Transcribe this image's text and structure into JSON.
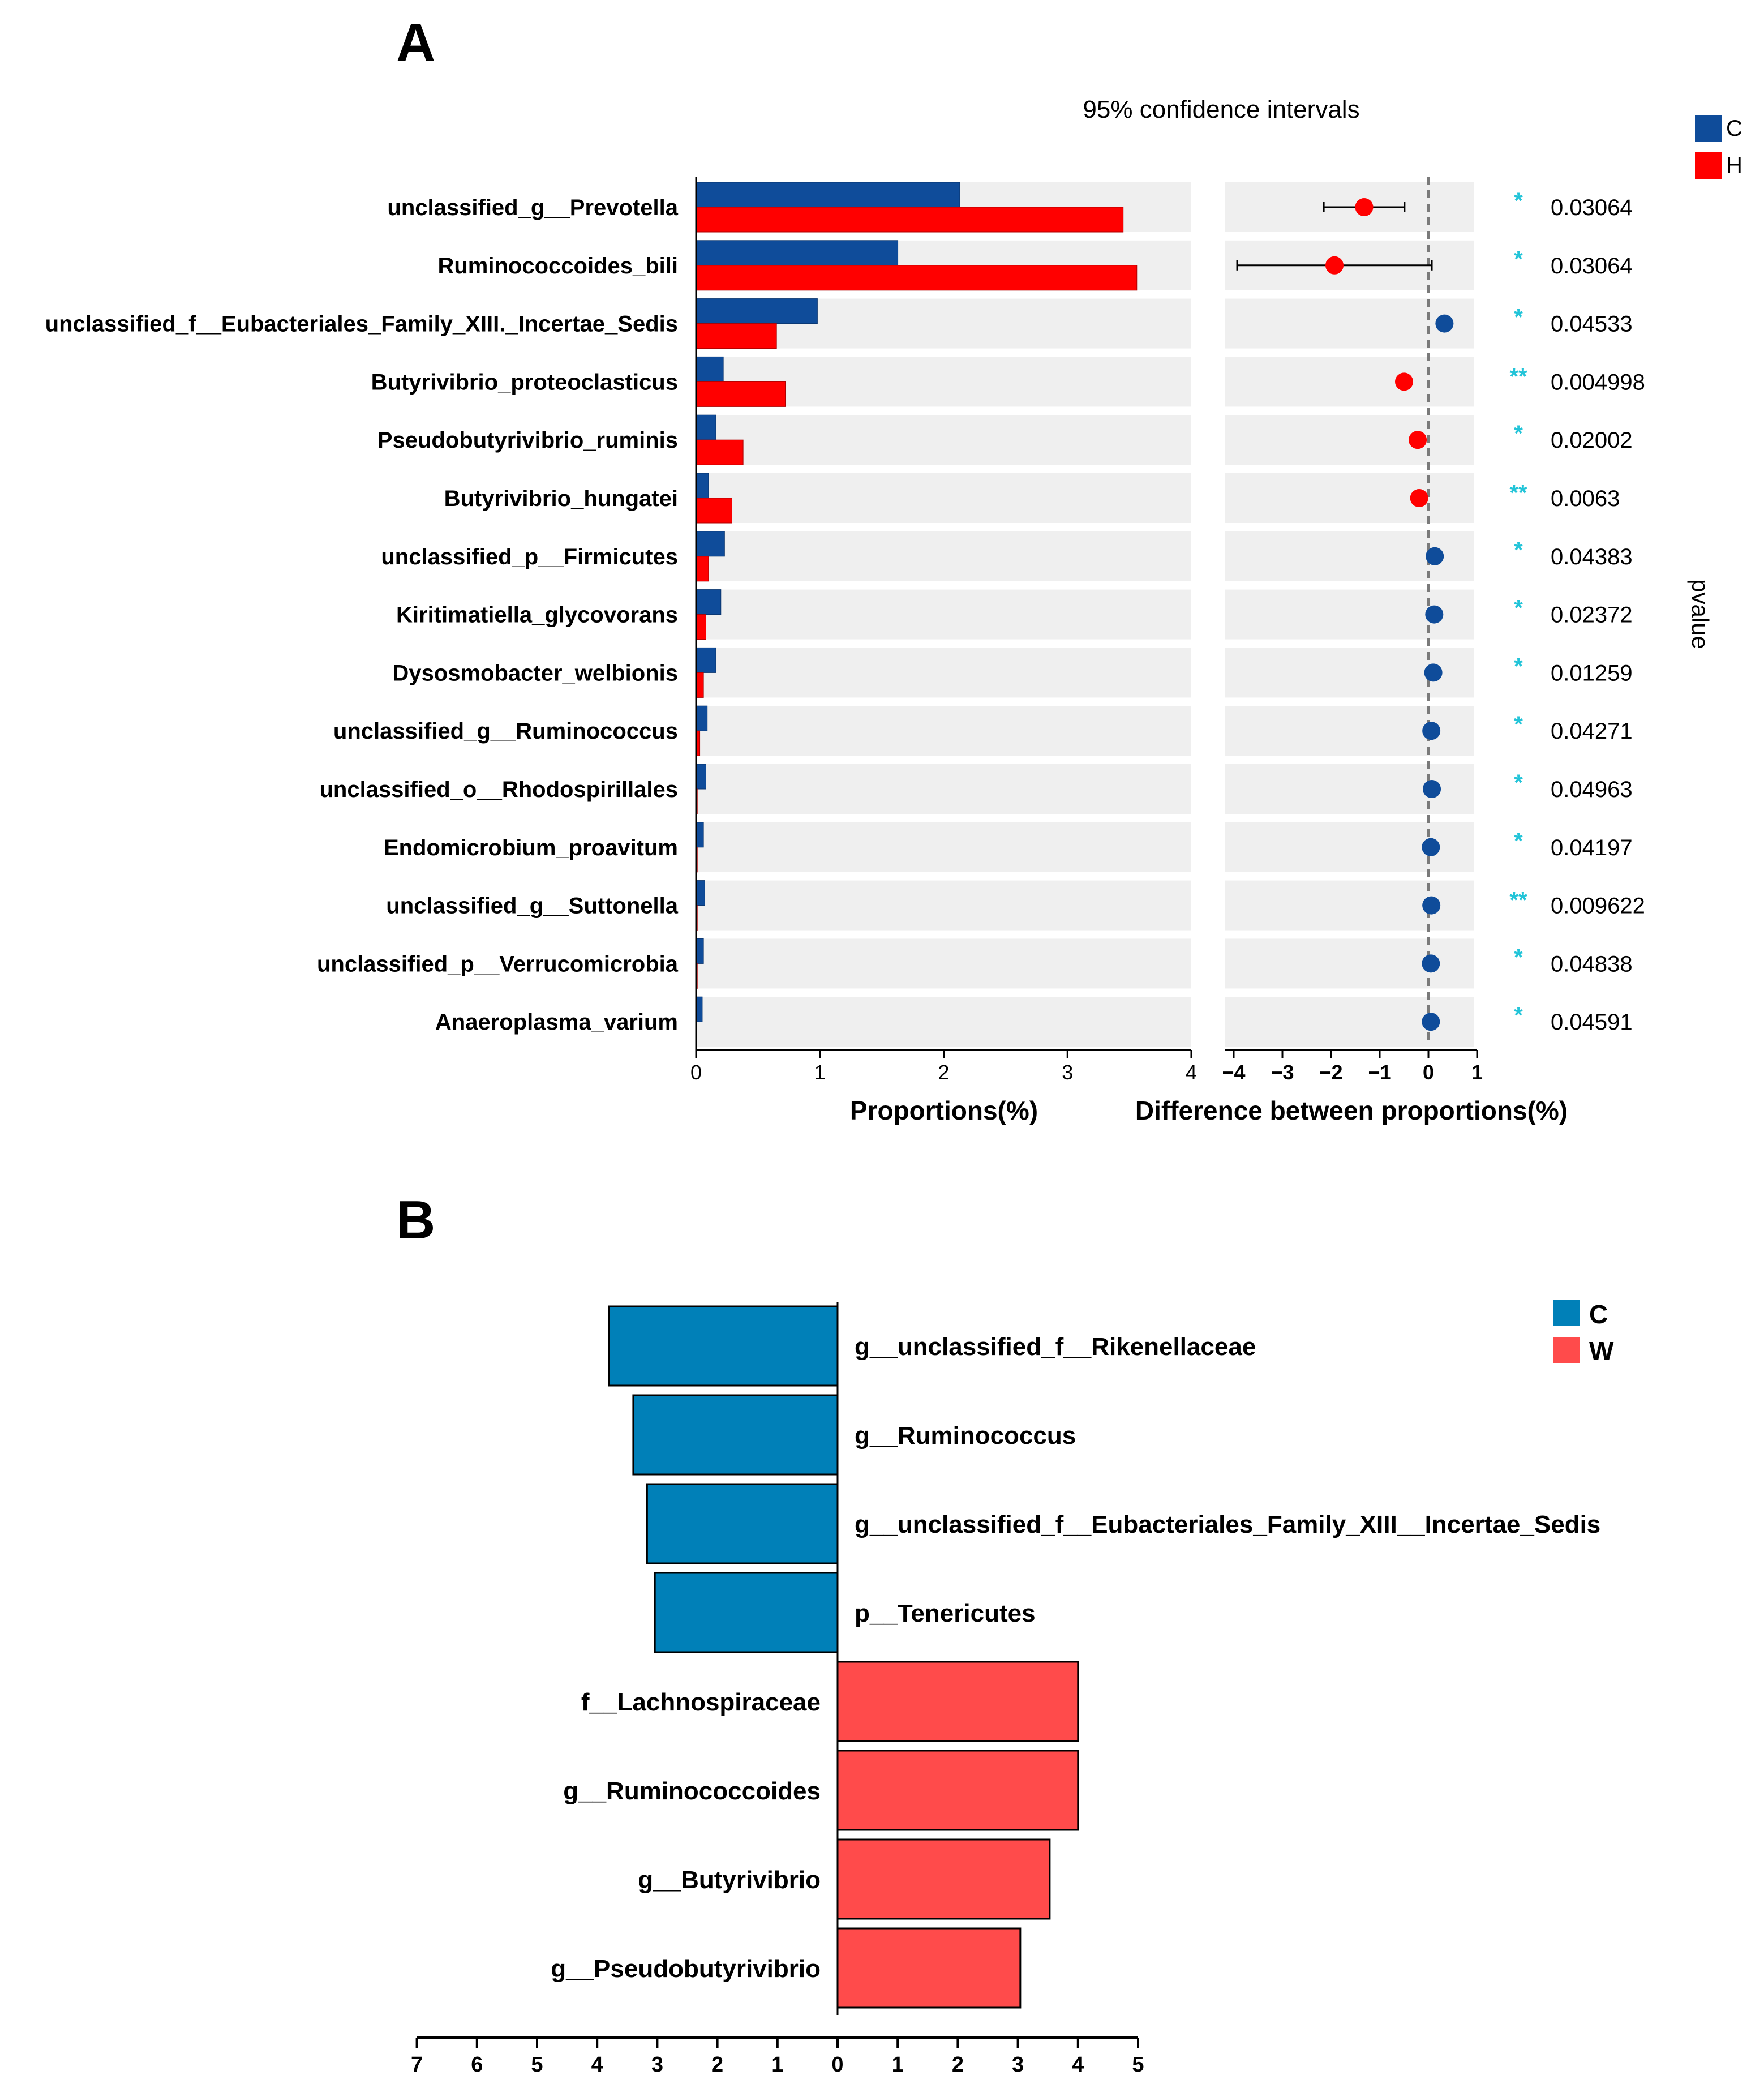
{
  "chart_data": [
    {
      "panel": "A",
      "type": "bar",
      "title": "95% confidence intervals",
      "xlabel": "Proportions(%)",
      "xlim": [
        0,
        4
      ],
      "xticks": [
        "0",
        "1",
        "2",
        "3",
        "4"
      ],
      "legend": {
        "position": "top-right",
        "entries": [
          {
            "name": "C",
            "color": "#0F4C9A"
          },
          {
            "name": "H",
            "color": "#FF0000"
          }
        ]
      },
      "categories": [
        "unclassified_g__Prevotella",
        "Ruminococcoides_bili",
        "unclassified_f__Eubacteriales_Family_XIII._Incertae_Sedis",
        "Butyrivibrio_proteoclasticus",
        "Pseudobutyrivibrio_ruminis",
        "Butyrivibrio_hungatei",
        "unclassified_p__Firmicutes",
        "Kiritimatiella_glycovorans",
        "Dysosmobacter_welbionis",
        "unclassified_g__Ruminococcus",
        "unclassified_o__Rhodospirillales",
        "Endomicrobium_proavitum",
        "unclassified_g__Suttonella",
        "unclassified_p__Verrucomicrobia",
        "Anaeroplasma_varium"
      ],
      "series": [
        {
          "name": "C",
          "color": "#0F4C9A",
          "values": [
            2.13,
            1.63,
            0.98,
            0.22,
            0.16,
            0.1,
            0.23,
            0.2,
            0.16,
            0.09,
            0.08,
            0.06,
            0.07,
            0.06,
            0.05
          ]
        },
        {
          "name": "H",
          "color": "#FF0000",
          "values": [
            3.45,
            3.56,
            0.65,
            0.72,
            0.38,
            0.29,
            0.1,
            0.08,
            0.06,
            0.03,
            0.01,
            0.01,
            0.01,
            0.01,
            0.0
          ]
        }
      ],
      "ci_plot": {
        "xlabel": "Difference between proportions(%)",
        "xlim": [
          -4,
          1
        ],
        "xticks": [
          "−4",
          "−3",
          "−2",
          "−1",
          "0",
          "1"
        ],
        "differences": [
          -1.32,
          -1.93,
          0.33,
          -0.5,
          -0.22,
          -0.19,
          0.13,
          0.12,
          0.1,
          0.06,
          0.07,
          0.05,
          0.06,
          0.05,
          0.05
        ],
        "ci_low": [
          -2.15,
          -3.93,
          null,
          null,
          null,
          null,
          null,
          null,
          null,
          null,
          null,
          null,
          null,
          null,
          null
        ],
        "ci_high": [
          -0.49,
          0.07,
          null,
          null,
          null,
          null,
          null,
          null,
          null,
          null,
          null,
          null,
          null,
          null,
          null
        ]
      },
      "pvalue_label": "pvalue",
      "significance": [
        "*",
        "*",
        "*",
        "**",
        "*",
        "**",
        "*",
        "*",
        "*",
        "*",
        "*",
        "*",
        "**",
        "*",
        "*"
      ],
      "pvalues": [
        "0.03064",
        "0.03064",
        "0.04533",
        "0.004998",
        "0.02002",
        "0.0063",
        "0.04383",
        "0.02372",
        "0.01259",
        "0.04271",
        "0.04963",
        "0.04197",
        "0.009622",
        "0.04838",
        "0.04591"
      ]
    },
    {
      "panel": "B",
      "type": "bar",
      "orientation": "horizontal-diverging",
      "xlim": [
        -7,
        5
      ],
      "xticks": [
        "7",
        "6",
        "5",
        "4",
        "3",
        "2",
        "1",
        "0",
        "1",
        "2",
        "3",
        "4",
        "5"
      ],
      "legend": {
        "position": "top-right",
        "entries": [
          {
            "name": "C",
            "color": "#0080B8"
          },
          {
            "name": "W",
            "color": "#FF4B4B"
          }
        ]
      },
      "categories": [
        "g__unclassified_f__Rikenellaceae",
        "g__Ruminococcus",
        "g__unclassified_f__Eubacteriales_Family_XIII__Incertae_Sedis",
        "p__Tenericutes",
        "f__Lachnospiraceae",
        "g__Ruminococcoides",
        "g__Butyrivibrio",
        "g__Pseudobutyrivibrio"
      ],
      "groups": [
        "C",
        "C",
        "C",
        "C",
        "W",
        "W",
        "W",
        "W"
      ],
      "values": [
        3.8,
        3.4,
        3.17,
        3.04,
        4.0,
        4.0,
        3.53,
        3.04
      ]
    }
  ]
}
